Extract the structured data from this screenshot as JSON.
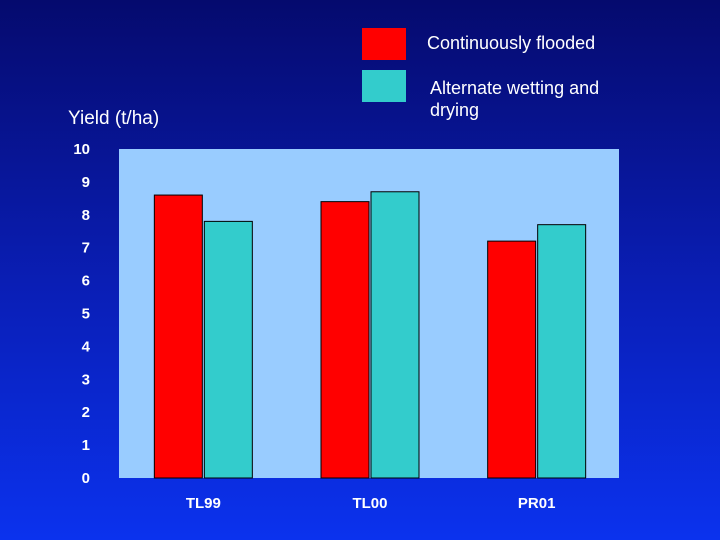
{
  "chart_data": {
    "type": "bar",
    "categories": [
      "TL99",
      "TL00",
      "PR01"
    ],
    "series": [
      {
        "name": "Continuously flooded",
        "values": [
          8.6,
          8.4,
          7.2
        ],
        "color": "#ff0000"
      },
      {
        "name": "Alternate wetting and drying",
        "values": [
          7.8,
          8.7,
          7.7
        ],
        "color": "#33cccc"
      }
    ],
    "ylabel": "Yield (t/ha)",
    "xlabel": "",
    "ylim": [
      0,
      10
    ],
    "yticks": [
      "0",
      "1",
      "2",
      "3",
      "4",
      "5",
      "6",
      "7",
      "8",
      "9",
      "10"
    ],
    "grid": false,
    "legend_position": "top-right",
    "plot_background": "#99ccff"
  },
  "legend": {
    "item1": "Continuously flooded",
    "item2": "Alternate wetting and drying"
  }
}
